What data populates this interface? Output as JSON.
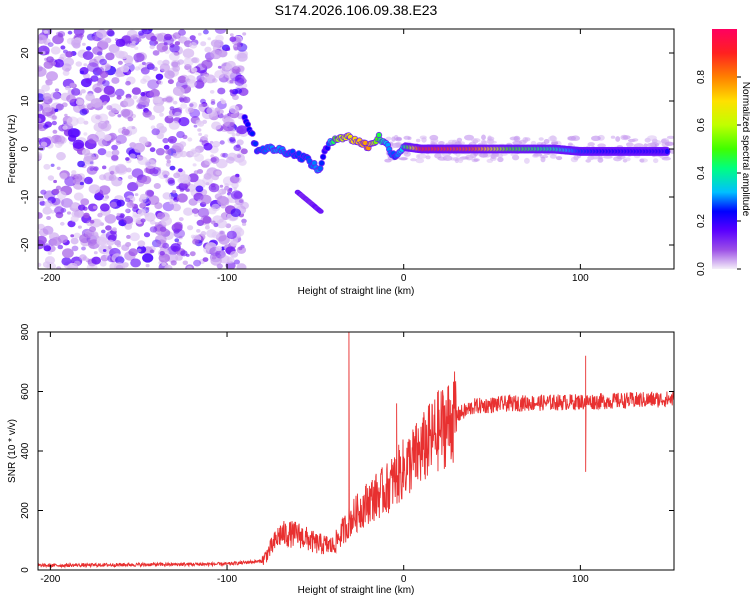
{
  "title": "S174.2026.106.09.38.E23",
  "chart_data": [
    {
      "type": "heatmap",
      "xlabel": "Height of straight line (km)",
      "ylabel": "Frequency (Hz)",
      "xlim": [
        -207,
        153
      ],
      "ylim": [
        -25,
        25
      ],
      "xticks": [
        -200,
        -100,
        0,
        100
      ],
      "xtick_labels": [
        "-200",
        "-100",
        "0",
        "100"
      ],
      "yticks": [
        20,
        10,
        0,
        -10,
        -20
      ],
      "ytick_labels": [
        "20",
        "10",
        "0",
        "-10",
        "-20"
      ],
      "colorbar": {
        "label": "Normalized spectral amplitude",
        "range": [
          0,
          1
        ],
        "ticks": [
          0,
          0.2,
          0.4,
          0.6,
          0.8
        ],
        "tick_labels": [
          "0.0",
          "0.2",
          "0.4",
          "0.6",
          "0.8"
        ],
        "colors": [
          "#f4eef8",
          "#9c4fe6",
          "#5a00ff",
          "#0000ff",
          "#00c0ff",
          "#00ff80",
          "#40ff00",
          "#c0ff00",
          "#ffe000",
          "#ff8000",
          "#ff2020",
          "#ff0060"
        ]
      },
      "ridge": [
        {
          "x": -90,
          "f": 7,
          "a": 0.25
        },
        {
          "x": -83,
          "f": 0,
          "a": 0.3
        },
        {
          "x": -72,
          "f": 0,
          "a": 0.35
        },
        {
          "x": -62,
          "f": -1,
          "a": 0.3
        },
        {
          "x": -55,
          "f": -2,
          "a": 0.3
        },
        {
          "x": -48,
          "f": -4.5,
          "a": 0.35
        },
        {
          "x": -44,
          "f": 0,
          "a": 0.2
        },
        {
          "x": -38,
          "f": 2.5,
          "a": 0.6
        },
        {
          "x": -32,
          "f": 2.5,
          "a": 0.7
        },
        {
          "x": -25,
          "f": 1.5,
          "a": 0.75
        },
        {
          "x": -20,
          "f": 0.5,
          "a": 0.8
        },
        {
          "x": -14,
          "f": 2.5,
          "a": 0.5
        },
        {
          "x": -9,
          "f": 0.5,
          "a": 0.35
        },
        {
          "x": -5,
          "f": -1.5,
          "a": 0.3
        },
        {
          "x": 0,
          "f": 0.5,
          "a": 0.4
        },
        {
          "x": 10,
          "f": 0,
          "a": 0.9
        },
        {
          "x": 40,
          "f": 0,
          "a": 0.85
        },
        {
          "x": 60,
          "f": 0,
          "a": 0.55
        },
        {
          "x": 85,
          "f": 0,
          "a": 0.45
        },
        {
          "x": 100,
          "f": -0.5,
          "a": 0.3
        },
        {
          "x": 125,
          "f": -0.5,
          "a": 0.25
        },
        {
          "x": 150,
          "f": -0.5,
          "a": 0.25
        }
      ]
    },
    {
      "type": "line",
      "xlabel": "Height of straight line (km)",
      "ylabel": "SNR (10 * v/v)",
      "xlim": [
        -207,
        153
      ],
      "ylim": [
        0,
        800
      ],
      "xticks": [
        -200,
        -100,
        0,
        100
      ],
      "xtick_labels": [
        "-200",
        "-100",
        "0",
        "100"
      ],
      "yticks": [
        0,
        200,
        400,
        600,
        800
      ],
      "ytick_labels": [
        "0",
        "200",
        "400",
        "600",
        "800"
      ],
      "color": "#e83030",
      "trend": [
        {
          "x": -207,
          "y": 15
        },
        {
          "x": -150,
          "y": 18
        },
        {
          "x": -100,
          "y": 20
        },
        {
          "x": -80,
          "y": 30
        },
        {
          "x": -70,
          "y": 120
        },
        {
          "x": -60,
          "y": 120
        },
        {
          "x": -50,
          "y": 90
        },
        {
          "x": -40,
          "y": 80
        },
        {
          "x": -30,
          "y": 170
        },
        {
          "x": -20,
          "y": 230
        },
        {
          "x": -10,
          "y": 270
        },
        {
          "x": 0,
          "y": 340
        },
        {
          "x": 10,
          "y": 400
        },
        {
          "x": 20,
          "y": 470
        },
        {
          "x": 30,
          "y": 520
        },
        {
          "x": 40,
          "y": 550
        },
        {
          "x": 60,
          "y": 560
        },
        {
          "x": 100,
          "y": 565
        },
        {
          "x": 153,
          "y": 575
        }
      ],
      "spikes": [
        {
          "x": -31,
          "y": 800
        },
        {
          "x": -4,
          "y": 560
        },
        {
          "x": 103,
          "y": 720
        },
        {
          "x": 103,
          "y": 330
        }
      ]
    }
  ]
}
